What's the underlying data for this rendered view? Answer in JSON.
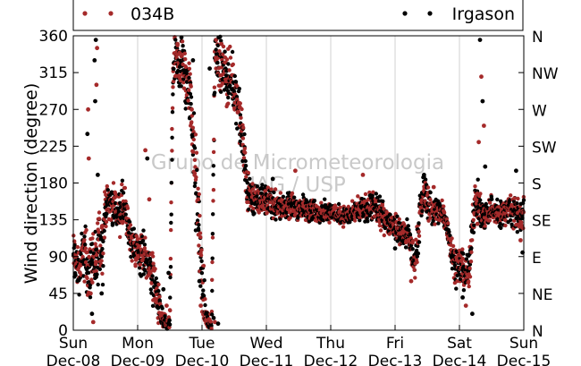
{
  "chart_data": {
    "type": "scatter",
    "ylabel": "Wind direction (degree)",
    "ylim": [
      0,
      360
    ],
    "yticks": [
      0,
      45,
      90,
      135,
      180,
      225,
      270,
      315,
      360
    ],
    "y2ticks": [
      {
        "value": 0,
        "label": "N"
      },
      {
        "value": 45,
        "label": "NE"
      },
      {
        "value": 90,
        "label": "E"
      },
      {
        "value": 135,
        "label": "SE"
      },
      {
        "value": 180,
        "label": "S"
      },
      {
        "value": 225,
        "label": "SW"
      },
      {
        "value": 270,
        "label": "W"
      },
      {
        "value": 315,
        "label": "NW"
      },
      {
        "value": 360,
        "label": "N"
      }
    ],
    "xlim": [
      0,
      7
    ],
    "xticks": [
      {
        "value": 0,
        "day": "Sun",
        "date": "Dec-08"
      },
      {
        "value": 1,
        "day": "Mon",
        "date": "Dec-09"
      },
      {
        "value": 2,
        "day": "Tue",
        "date": "Dec-10"
      },
      {
        "value": 3,
        "day": "Wed",
        "date": "Dec-11"
      },
      {
        "value": 4,
        "day": "Thu",
        "date": "Dec-12"
      },
      {
        "value": 5,
        "day": "Fri",
        "date": "Dec-13"
      },
      {
        "value": 6,
        "day": "Sat",
        "date": "Dec-14"
      },
      {
        "value": 7,
        "day": "Sun",
        "date": "Dec-15"
      }
    ],
    "grid": "vertical",
    "legend": {
      "position": "top",
      "entries": [
        "034B",
        "Irgason"
      ]
    },
    "watermark": [
      "Grupo de Micrometeorologia",
      "IAG / USP"
    ],
    "series": [
      {
        "name": "034B",
        "color": "#a52a2a"
      },
      {
        "name": "Irgason",
        "color": "#000000"
      }
    ],
    "trend": [
      [
        0.0,
        90,
        25
      ],
      [
        0.05,
        80,
        20
      ],
      [
        0.1,
        75,
        20
      ],
      [
        0.15,
        100,
        20
      ],
      [
        0.2,
        85,
        30
      ],
      [
        0.25,
        70,
        25
      ],
      [
        0.3,
        95,
        25
      ],
      [
        0.35,
        70,
        25
      ],
      [
        0.4,
        110,
        30
      ],
      [
        0.45,
        100,
        30
      ],
      [
        0.5,
        150,
        15
      ],
      [
        0.55,
        160,
        15
      ],
      [
        0.6,
        150,
        15
      ],
      [
        0.65,
        155,
        15
      ],
      [
        0.7,
        140,
        15
      ],
      [
        0.75,
        150,
        20
      ],
      [
        0.8,
        150,
        20
      ],
      [
        0.85,
        125,
        15
      ],
      [
        0.9,
        110,
        15
      ],
      [
        0.95,
        100,
        15
      ],
      [
        1.0,
        100,
        15
      ],
      [
        1.05,
        90,
        20
      ],
      [
        1.1,
        95,
        20
      ],
      [
        1.15,
        85,
        15
      ],
      [
        1.2,
        75,
        20
      ],
      [
        1.25,
        60,
        20
      ],
      [
        1.3,
        40,
        20
      ],
      [
        1.35,
        20,
        15
      ],
      [
        1.4,
        10,
        10
      ],
      [
        1.45,
        5,
        5
      ],
      [
        1.5,
        10,
        10
      ],
      [
        1.55,
        320,
        20
      ],
      [
        1.6,
        330,
        20
      ],
      [
        1.65,
        320,
        20
      ],
      [
        1.7,
        330,
        25
      ],
      [
        1.75,
        300,
        25
      ],
      [
        1.8,
        300,
        25
      ],
      [
        1.85,
        250,
        30
      ],
      [
        1.9,
        180,
        40
      ],
      [
        1.95,
        130,
        40
      ],
      [
        2.0,
        60,
        30
      ],
      [
        2.05,
        20,
        15
      ],
      [
        2.1,
        10,
        10
      ],
      [
        2.15,
        5,
        5
      ],
      [
        2.2,
        340,
        15
      ],
      [
        2.25,
        330,
        20
      ],
      [
        2.3,
        320,
        25
      ],
      [
        2.35,
        315,
        20
      ],
      [
        2.4,
        310,
        25
      ],
      [
        2.45,
        305,
        20
      ],
      [
        2.5,
        300,
        20
      ],
      [
        2.55,
        280,
        20
      ],
      [
        2.6,
        250,
        25
      ],
      [
        2.65,
        220,
        25
      ],
      [
        2.7,
        175,
        20
      ],
      [
        2.75,
        165,
        15
      ],
      [
        2.8,
        160,
        15
      ],
      [
        2.85,
        158,
        12
      ],
      [
        2.9,
        158,
        12
      ],
      [
        2.95,
        160,
        12
      ],
      [
        3.0,
        160,
        12
      ],
      [
        3.1,
        155,
        12
      ],
      [
        3.2,
        152,
        12
      ],
      [
        3.3,
        150,
        10
      ],
      [
        3.4,
        152,
        10
      ],
      [
        3.5,
        150,
        10
      ],
      [
        3.6,
        148,
        10
      ],
      [
        3.7,
        145,
        10
      ],
      [
        3.8,
        145,
        8
      ],
      [
        3.9,
        145,
        8
      ],
      [
        4.0,
        145,
        8
      ],
      [
        4.1,
        142,
        8
      ],
      [
        4.2,
        140,
        8
      ],
      [
        4.3,
        140,
        8
      ],
      [
        4.4,
        145,
        10
      ],
      [
        4.5,
        148,
        10
      ],
      [
        4.6,
        152,
        12
      ],
      [
        4.7,
        148,
        12
      ],
      [
        4.8,
        140,
        12
      ],
      [
        4.9,
        132,
        10
      ],
      [
        5.0,
        128,
        10
      ],
      [
        5.1,
        118,
        12
      ],
      [
        5.2,
        115,
        12
      ],
      [
        5.25,
        100,
        15
      ],
      [
        5.3,
        80,
        15
      ],
      [
        5.35,
        110,
        15
      ],
      [
        5.4,
        150,
        15
      ],
      [
        5.45,
        170,
        15
      ],
      [
        5.5,
        160,
        15
      ],
      [
        5.55,
        150,
        15
      ],
      [
        5.6,
        145,
        12
      ],
      [
        5.7,
        145,
        12
      ],
      [
        5.75,
        140,
        12
      ],
      [
        5.8,
        130,
        12
      ],
      [
        5.85,
        110,
        12
      ],
      [
        5.9,
        90,
        15
      ],
      [
        5.95,
        80,
        15
      ],
      [
        6.0,
        80,
        15
      ],
      [
        6.05,
        75,
        15
      ],
      [
        6.1,
        70,
        15
      ],
      [
        6.15,
        65,
        15
      ],
      [
        6.2,
        130,
        15
      ],
      [
        6.25,
        160,
        15
      ],
      [
        6.3,
        155,
        15
      ],
      [
        6.35,
        140,
        12
      ],
      [
        6.4,
        140,
        12
      ],
      [
        6.5,
        150,
        12
      ],
      [
        6.6,
        140,
        12
      ],
      [
        6.7,
        145,
        12
      ],
      [
        6.8,
        150,
        12
      ],
      [
        6.9,
        140,
        15
      ],
      [
        7.0,
        140,
        15
      ]
    ],
    "spikes": [
      [
        0.35,
        355
      ],
      [
        0.37,
        345
      ],
      [
        0.33,
        330
      ],
      [
        0.36,
        300
      ],
      [
        0.34,
        280
      ],
      [
        0.23,
        270
      ],
      [
        0.22,
        240
      ],
      [
        0.24,
        210
      ],
      [
        0.38,
        190
      ],
      [
        0.27,
        45
      ],
      [
        0.29,
        20
      ],
      [
        0.31,
        10
      ],
      [
        0.44,
        45
      ],
      [
        1.12,
        220
      ],
      [
        1.15,
        210
      ],
      [
        1.18,
        160
      ],
      [
        1.4,
        50
      ],
      [
        1.45,
        30
      ],
      [
        1.48,
        70
      ],
      [
        1.62,
        350
      ],
      [
        1.68,
        358
      ],
      [
        1.84,
        270
      ],
      [
        1.86,
        330
      ],
      [
        1.94,
        160
      ],
      [
        1.96,
        60
      ],
      [
        1.98,
        30
      ],
      [
        2.12,
        320
      ],
      [
        2.22,
        355
      ],
      [
        2.26,
        358
      ],
      [
        2.3,
        350
      ],
      [
        2.18,
        15
      ],
      [
        2.2,
        10
      ],
      [
        2.25,
        8
      ],
      [
        3.45,
        195
      ],
      [
        3.1,
        185
      ],
      [
        4.5,
        190
      ],
      [
        5.0,
        100
      ],
      [
        5.25,
        60
      ],
      [
        5.45,
        190
      ],
      [
        5.6,
        175
      ],
      [
        6.05,
        40
      ],
      [
        6.1,
        30
      ],
      [
        6.2,
        20
      ],
      [
        6.28,
        130
      ],
      [
        6.32,
        355
      ],
      [
        6.34,
        310
      ],
      [
        6.36,
        280
      ],
      [
        6.38,
        250
      ],
      [
        6.4,
        200
      ],
      [
        6.3,
        230
      ],
      [
        6.88,
        195
      ],
      [
        6.95,
        110
      ],
      [
        6.98,
        95
      ]
    ]
  }
}
